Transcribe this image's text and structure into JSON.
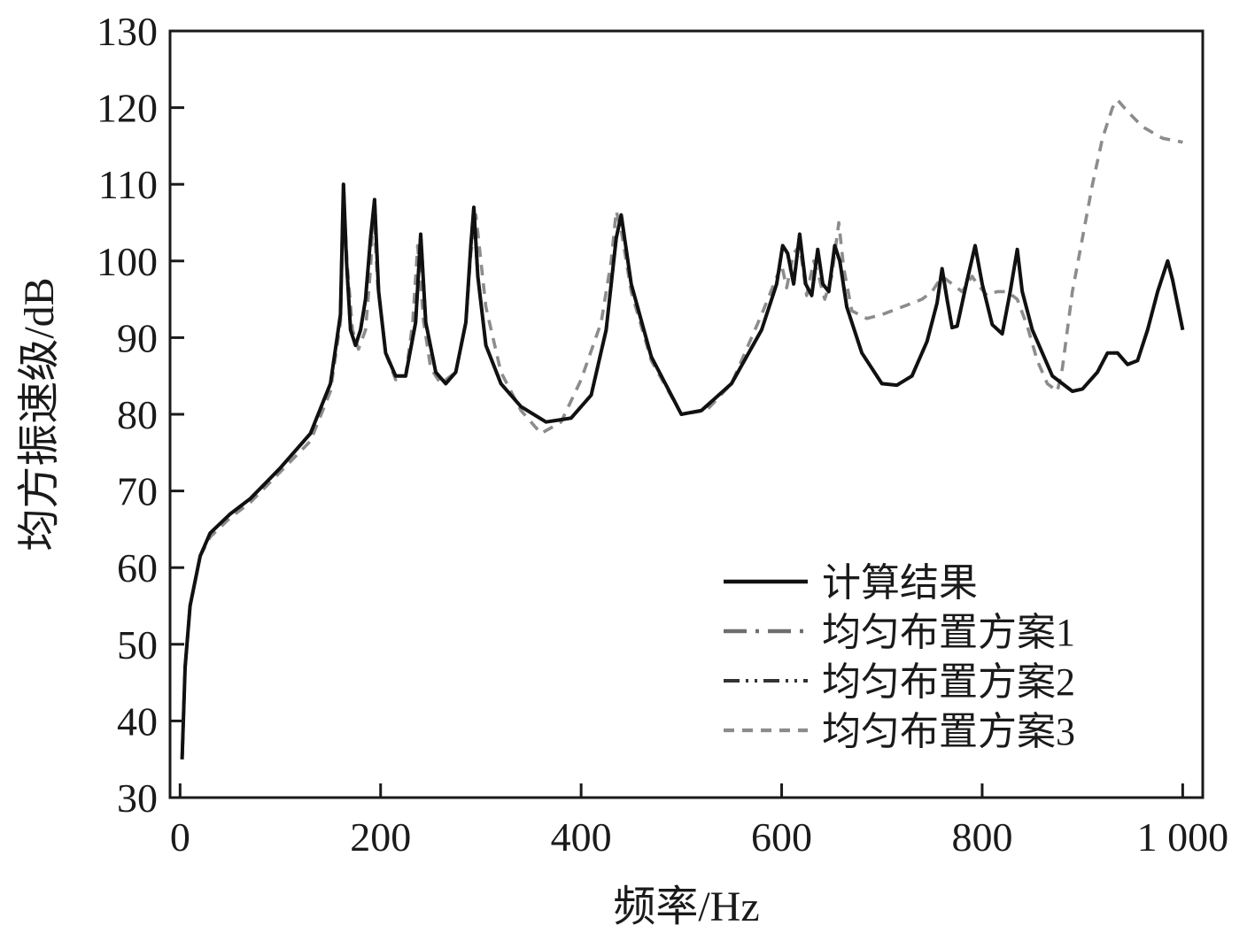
{
  "chart_data": {
    "type": "line",
    "title": "",
    "xlabel": "频率/Hz",
    "ylabel": "均方振速级/dB",
    "xlim": [
      -10,
      1020
    ],
    "ylim": [
      30,
      130
    ],
    "xticks": [
      0,
      200,
      400,
      600,
      800,
      1000
    ],
    "xtick_labels": [
      "0",
      "200",
      "400",
      "600",
      "800",
      "1 000"
    ],
    "yticks": [
      30,
      40,
      50,
      60,
      70,
      80,
      90,
      100,
      110,
      120,
      130
    ],
    "ytick_labels": [
      "30",
      "40",
      "50",
      "60",
      "70",
      "80",
      "90",
      "100",
      "110",
      "120",
      "130"
    ],
    "grid": false,
    "legend_position": "lower-right",
    "series": [
      {
        "name": "计算结果",
        "color": "#111111",
        "dash": "solid",
        "x": [
          2,
          5,
          10,
          20,
          30,
          50,
          70,
          100,
          130,
          150,
          160,
          163,
          166,
          170,
          175,
          180,
          185,
          190,
          194,
          198,
          205,
          215,
          225,
          235,
          240,
          245,
          255,
          265,
          275,
          285,
          290,
          293,
          297,
          305,
          320,
          340,
          365,
          390,
          410,
          425,
          435,
          440,
          450,
          470,
          500,
          520,
          550,
          580,
          595,
          601,
          606,
          612,
          618,
          624,
          630,
          636,
          641,
          647,
          653,
          658,
          665,
          680,
          700,
          715,
          730,
          745,
          755,
          760,
          765,
          770,
          775,
          785,
          793,
          800,
          810,
          820,
          828,
          835,
          840,
          850,
          870,
          890,
          900,
          915,
          925,
          935,
          945,
          955,
          965,
          975,
          985,
          990,
          1000
        ],
        "y": [
          35,
          47,
          55,
          61.5,
          64.5,
          67,
          69,
          73,
          77.5,
          84,
          93,
          110,
          100,
          91,
          89,
          91,
          95,
          103,
          108,
          96,
          88,
          85,
          85,
          92,
          103.5,
          92,
          85.5,
          84,
          85.5,
          92,
          102,
          107,
          98,
          89,
          84,
          81,
          79,
          79.5,
          82.5,
          91,
          103,
          106,
          97,
          87.5,
          80,
          80.5,
          84,
          91,
          97,
          102,
          101,
          97,
          103.5,
          97,
          95.5,
          101.5,
          97,
          96,
          102,
          100,
          94,
          88,
          84,
          83.8,
          85,
          89.5,
          94.5,
          99,
          95,
          91.3,
          91.5,
          97.5,
          102,
          97,
          91.7,
          90.5,
          96,
          101.5,
          96,
          91,
          85,
          83,
          83.3,
          85.5,
          88,
          88,
          86.5,
          87,
          91,
          96,
          100,
          97.5,
          91
        ]
      },
      {
        "name": "均匀布置方案1",
        "color": "#6e6e6e",
        "dash": "dashdot",
        "x": [
          2,
          5,
          10,
          20,
          30,
          50,
          70,
          100,
          130,
          150,
          160,
          163,
          166,
          170,
          175,
          180,
          185,
          190,
          194,
          198,
          205,
          215,
          225,
          235,
          240,
          245,
          255,
          265,
          275,
          285,
          290,
          293,
          297,
          305,
          320,
          340,
          365,
          390,
          410,
          425,
          435,
          440,
          450,
          470,
          500,
          520,
          550,
          580,
          595,
          601,
          606,
          612,
          618,
          624,
          630,
          636,
          641,
          647,
          653,
          658,
          665,
          680,
          700,
          715,
          730,
          745,
          755,
          760,
          765,
          770,
          775,
          785,
          793,
          800,
          810,
          820,
          828,
          835,
          840,
          850,
          870,
          890,
          900,
          915,
          925,
          935,
          945,
          955,
          965,
          975,
          985,
          990,
          1000
        ],
        "y": [
          35,
          47,
          55,
          61.5,
          64.5,
          67,
          69,
          73,
          77.5,
          84,
          93,
          110,
          100,
          91,
          89,
          91,
          95,
          103,
          108,
          96,
          88,
          85,
          85,
          92,
          103.5,
          92,
          85.5,
          84,
          85.5,
          92,
          102,
          107,
          98,
          89,
          84,
          81,
          79,
          79.5,
          82.5,
          91,
          103,
          106,
          97,
          87.5,
          80,
          80.5,
          84,
          91,
          97,
          102,
          101,
          97,
          103.5,
          97,
          95.5,
          101.5,
          97,
          96,
          102,
          100,
          94,
          88,
          84,
          83.8,
          85,
          89.5,
          94.5,
          99,
          95,
          91.3,
          91.5,
          97.5,
          102,
          97,
          91.7,
          90.5,
          96,
          101.5,
          96,
          91,
          85,
          83,
          83.3,
          85.5,
          88,
          88,
          86.5,
          87,
          91,
          96,
          100,
          97.5,
          91
        ]
      },
      {
        "name": "均匀布置方案2",
        "color": "#333333",
        "dash": "dashdotdot",
        "x": [
          2,
          5,
          10,
          20,
          30,
          50,
          70,
          100,
          130,
          150,
          160,
          163,
          166,
          170,
          175,
          180,
          185,
          190,
          194,
          198,
          205,
          215,
          225,
          235,
          240,
          245,
          255,
          265,
          275,
          285,
          290,
          293,
          297,
          305,
          320,
          340,
          365,
          390,
          410,
          425,
          435,
          440,
          450,
          470,
          500,
          520,
          550,
          580,
          595,
          601,
          606,
          612,
          618,
          624,
          630,
          636,
          641,
          647,
          653,
          658,
          665,
          680,
          700,
          715,
          730,
          745,
          755,
          760,
          765,
          770,
          775,
          785,
          793,
          800,
          810,
          820,
          828,
          835,
          840,
          850,
          870,
          890,
          900,
          915,
          925,
          935,
          945,
          955,
          965,
          975,
          985,
          990,
          1000
        ],
        "y": [
          35,
          47,
          55,
          61.5,
          64.5,
          67,
          69,
          73,
          77.5,
          84,
          93,
          110,
          100,
          91,
          89,
          91,
          95,
          103,
          108,
          96,
          88,
          85,
          85,
          92,
          103.5,
          92,
          85.5,
          84,
          85.5,
          92,
          102,
          107,
          98,
          89,
          84,
          81,
          79,
          79.5,
          82.5,
          91,
          103,
          106,
          97,
          87.5,
          80,
          80.5,
          84,
          91,
          97,
          102,
          101,
          97,
          103.5,
          97,
          95.5,
          101.5,
          97,
          96,
          102,
          100,
          94,
          88,
          84,
          83.8,
          85,
          89.5,
          94.5,
          99,
          95,
          91.3,
          91.5,
          97.5,
          102,
          97,
          91.7,
          90.5,
          96,
          101.5,
          96,
          91,
          85,
          83,
          83.3,
          85.5,
          88,
          88,
          86.5,
          87,
          91,
          96,
          100,
          97.5,
          91
        ]
      },
      {
        "name": "均匀布置方案3",
        "color": "#8c8c8c",
        "dash": "dashed",
        "x": [
          2,
          5,
          10,
          20,
          30,
          50,
          70,
          100,
          130,
          150,
          160,
          163,
          167,
          172,
          178,
          185,
          190,
          193,
          197,
          205,
          215,
          225,
          232,
          237,
          243,
          250,
          260,
          275,
          285,
          290,
          295,
          305,
          320,
          340,
          360,
          380,
          400,
          420,
          430,
          435,
          440,
          450,
          470,
          500,
          525,
          550,
          580,
          600,
          605,
          612,
          618,
          625,
          632,
          637,
          643,
          650,
          657,
          662,
          670,
          685,
          700,
          720,
          740,
          750,
          760,
          770,
          780,
          790,
          795,
          805,
          815,
          825,
          835,
          845,
          855,
          865,
          875,
          880,
          890,
          900,
          910,
          920,
          930,
          935,
          945,
          960,
          980,
          1000
        ],
        "y": [
          35,
          47,
          55,
          61.5,
          64,
          66.5,
          68.5,
          72.5,
          76.5,
          83,
          92,
          108.5,
          99,
          91,
          88.5,
          91,
          99,
          107,
          97,
          88,
          84.5,
          85,
          92,
          102,
          92,
          86,
          84,
          85.5,
          92,
          101,
          106,
          94,
          85.5,
          80.5,
          77.5,
          79,
          84.5,
          92,
          100,
          106.5,
          104,
          96,
          87,
          80,
          80.5,
          84,
          93,
          99.5,
          96.5,
          101,
          102,
          95.5,
          100,
          98,
          95,
          98,
          105,
          99,
          93.5,
          92.5,
          93,
          94,
          95,
          96,
          98,
          97,
          96,
          98,
          97,
          95.5,
          96,
          96,
          95,
          91.5,
          87,
          84,
          83,
          86,
          96,
          103,
          110,
          116,
          120,
          121,
          119.5,
          117.5,
          116,
          115.5
        ]
      }
    ]
  }
}
